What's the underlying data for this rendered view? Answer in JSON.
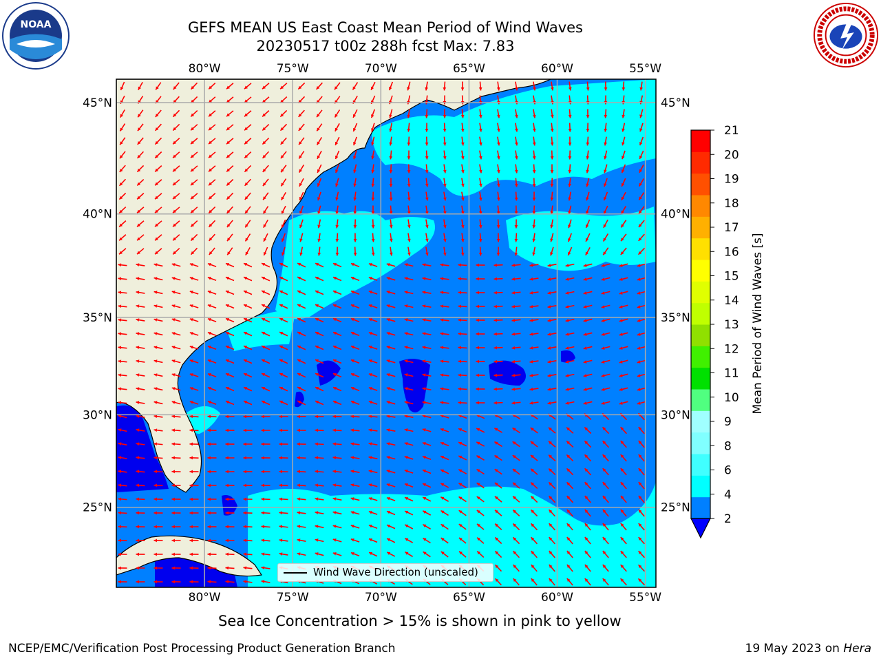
{
  "title": {
    "line1": "GEFS MEAN US East Coast Mean Period of Wind Waves",
    "line2": "20230517 t00z 288h fcst   Max: 7.83"
  },
  "logos": {
    "left": "noaa-logo",
    "left_text": "NOAA",
    "right": "national-weather-service-logo",
    "right_text": "NATIONAL WEATHER SERVICE"
  },
  "map": {
    "lon_ticks": [
      "80°W",
      "75°W",
      "70°W",
      "65°W",
      "60°W",
      "55°W"
    ],
    "lat_ticks": [
      "45°N",
      "40°N",
      "35°N",
      "30°N",
      "25°N"
    ],
    "lon_range": [
      -85,
      -54.4
    ],
    "lat_range": [
      20.5,
      46
    ],
    "land_color": "#efefdc",
    "arrow_color": "#ff0000",
    "legend_label": "Wind Wave Direction (unscaled)"
  },
  "colorbar": {
    "label": "Mean Period of Wind Waves [s]",
    "ticks": [
      "21",
      "20",
      "19",
      "18",
      "17",
      "16",
      "15",
      "14",
      "13",
      "12",
      "11",
      "10",
      "9",
      "8",
      "6",
      "4",
      "2"
    ],
    "colors": [
      "#0000ff",
      "#0080ff",
      "#00ffff",
      "#40ffff",
      "#80ffff",
      "#a0ffff",
      "#50ff80",
      "#00e000",
      "#40f000",
      "#90e000",
      "#c0ff00",
      "#e0ff00",
      "#ffff00",
      "#ffe000",
      "#ffb000",
      "#ff8800",
      "#ff5000",
      "#ff2a00",
      "#ff0000"
    ]
  },
  "ice_note": "Sea Ice Concentration > 15% is shown in pink to yellow",
  "footer": {
    "left": "NCEP/EMC/Verification Post Processing Product Generation Branch",
    "right_date": "19 May 2023 on ",
    "right_host": "Hera"
  }
}
